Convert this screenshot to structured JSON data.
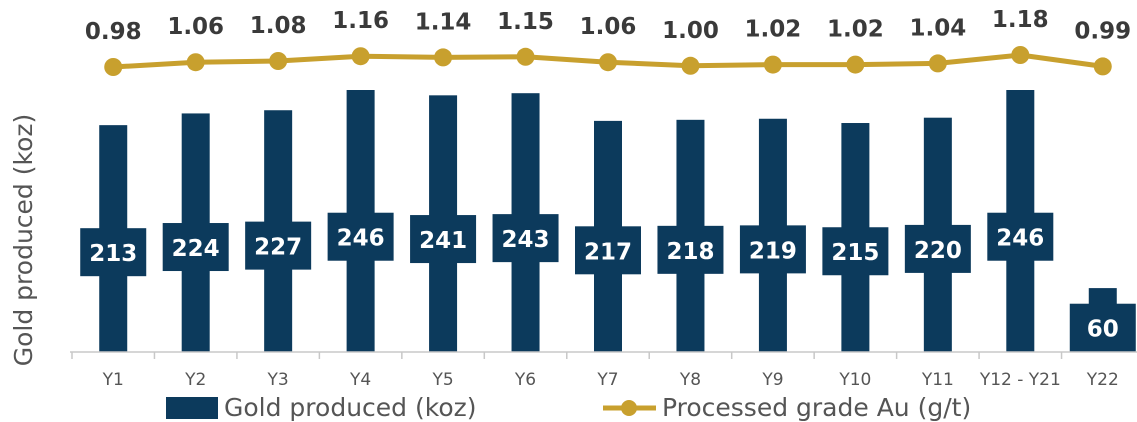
{
  "chart_data": {
    "type": "bar",
    "categories": [
      "Y1",
      "Y2",
      "Y3",
      "Y4",
      "Y5",
      "Y6",
      "Y7",
      "Y8",
      "Y9",
      "Y10",
      "Y11",
      "Y12 - Y21",
      "Y22"
    ],
    "series": [
      {
        "name": "Gold produced (koz)",
        "type": "bar",
        "values": [
          213,
          224,
          227,
          246,
          241,
          243,
          217,
          218,
          219,
          215,
          220,
          246,
          60
        ],
        "color": "#0c3a5c"
      },
      {
        "name": "Processed grade Au (g/t)",
        "type": "line",
        "values": [
          0.98,
          1.06,
          1.08,
          1.16,
          1.14,
          1.15,
          1.06,
          1.0,
          1.02,
          1.02,
          1.04,
          1.18,
          0.99
        ],
        "value_labels": [
          "0.98",
          "1.06",
          "1.08",
          "1.16",
          "1.14",
          "1.15",
          "1.06",
          "1.00",
          "1.02",
          "1.02",
          "1.04",
          "1.18",
          "0.99"
        ],
        "color": "#c8a02e"
      }
    ],
    "ylabel": "Gold produced (koz)",
    "xlabel": "",
    "ylim": [
      0,
      246
    ],
    "grid": false,
    "legend_position": "bottom"
  }
}
